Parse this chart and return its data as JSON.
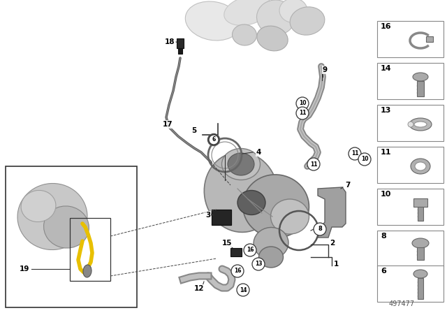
{
  "bg_color": "#ffffff",
  "part_number": "497477",
  "fig_width": 6.4,
  "fig_height": 4.48,
  "dpi": 100,
  "gray_light": "#d8d8d8",
  "gray_mid": "#b0b0b0",
  "gray_dark": "#808080",
  "gray_darker": "#606060",
  "black": "#000000",
  "line_color": "#333333"
}
